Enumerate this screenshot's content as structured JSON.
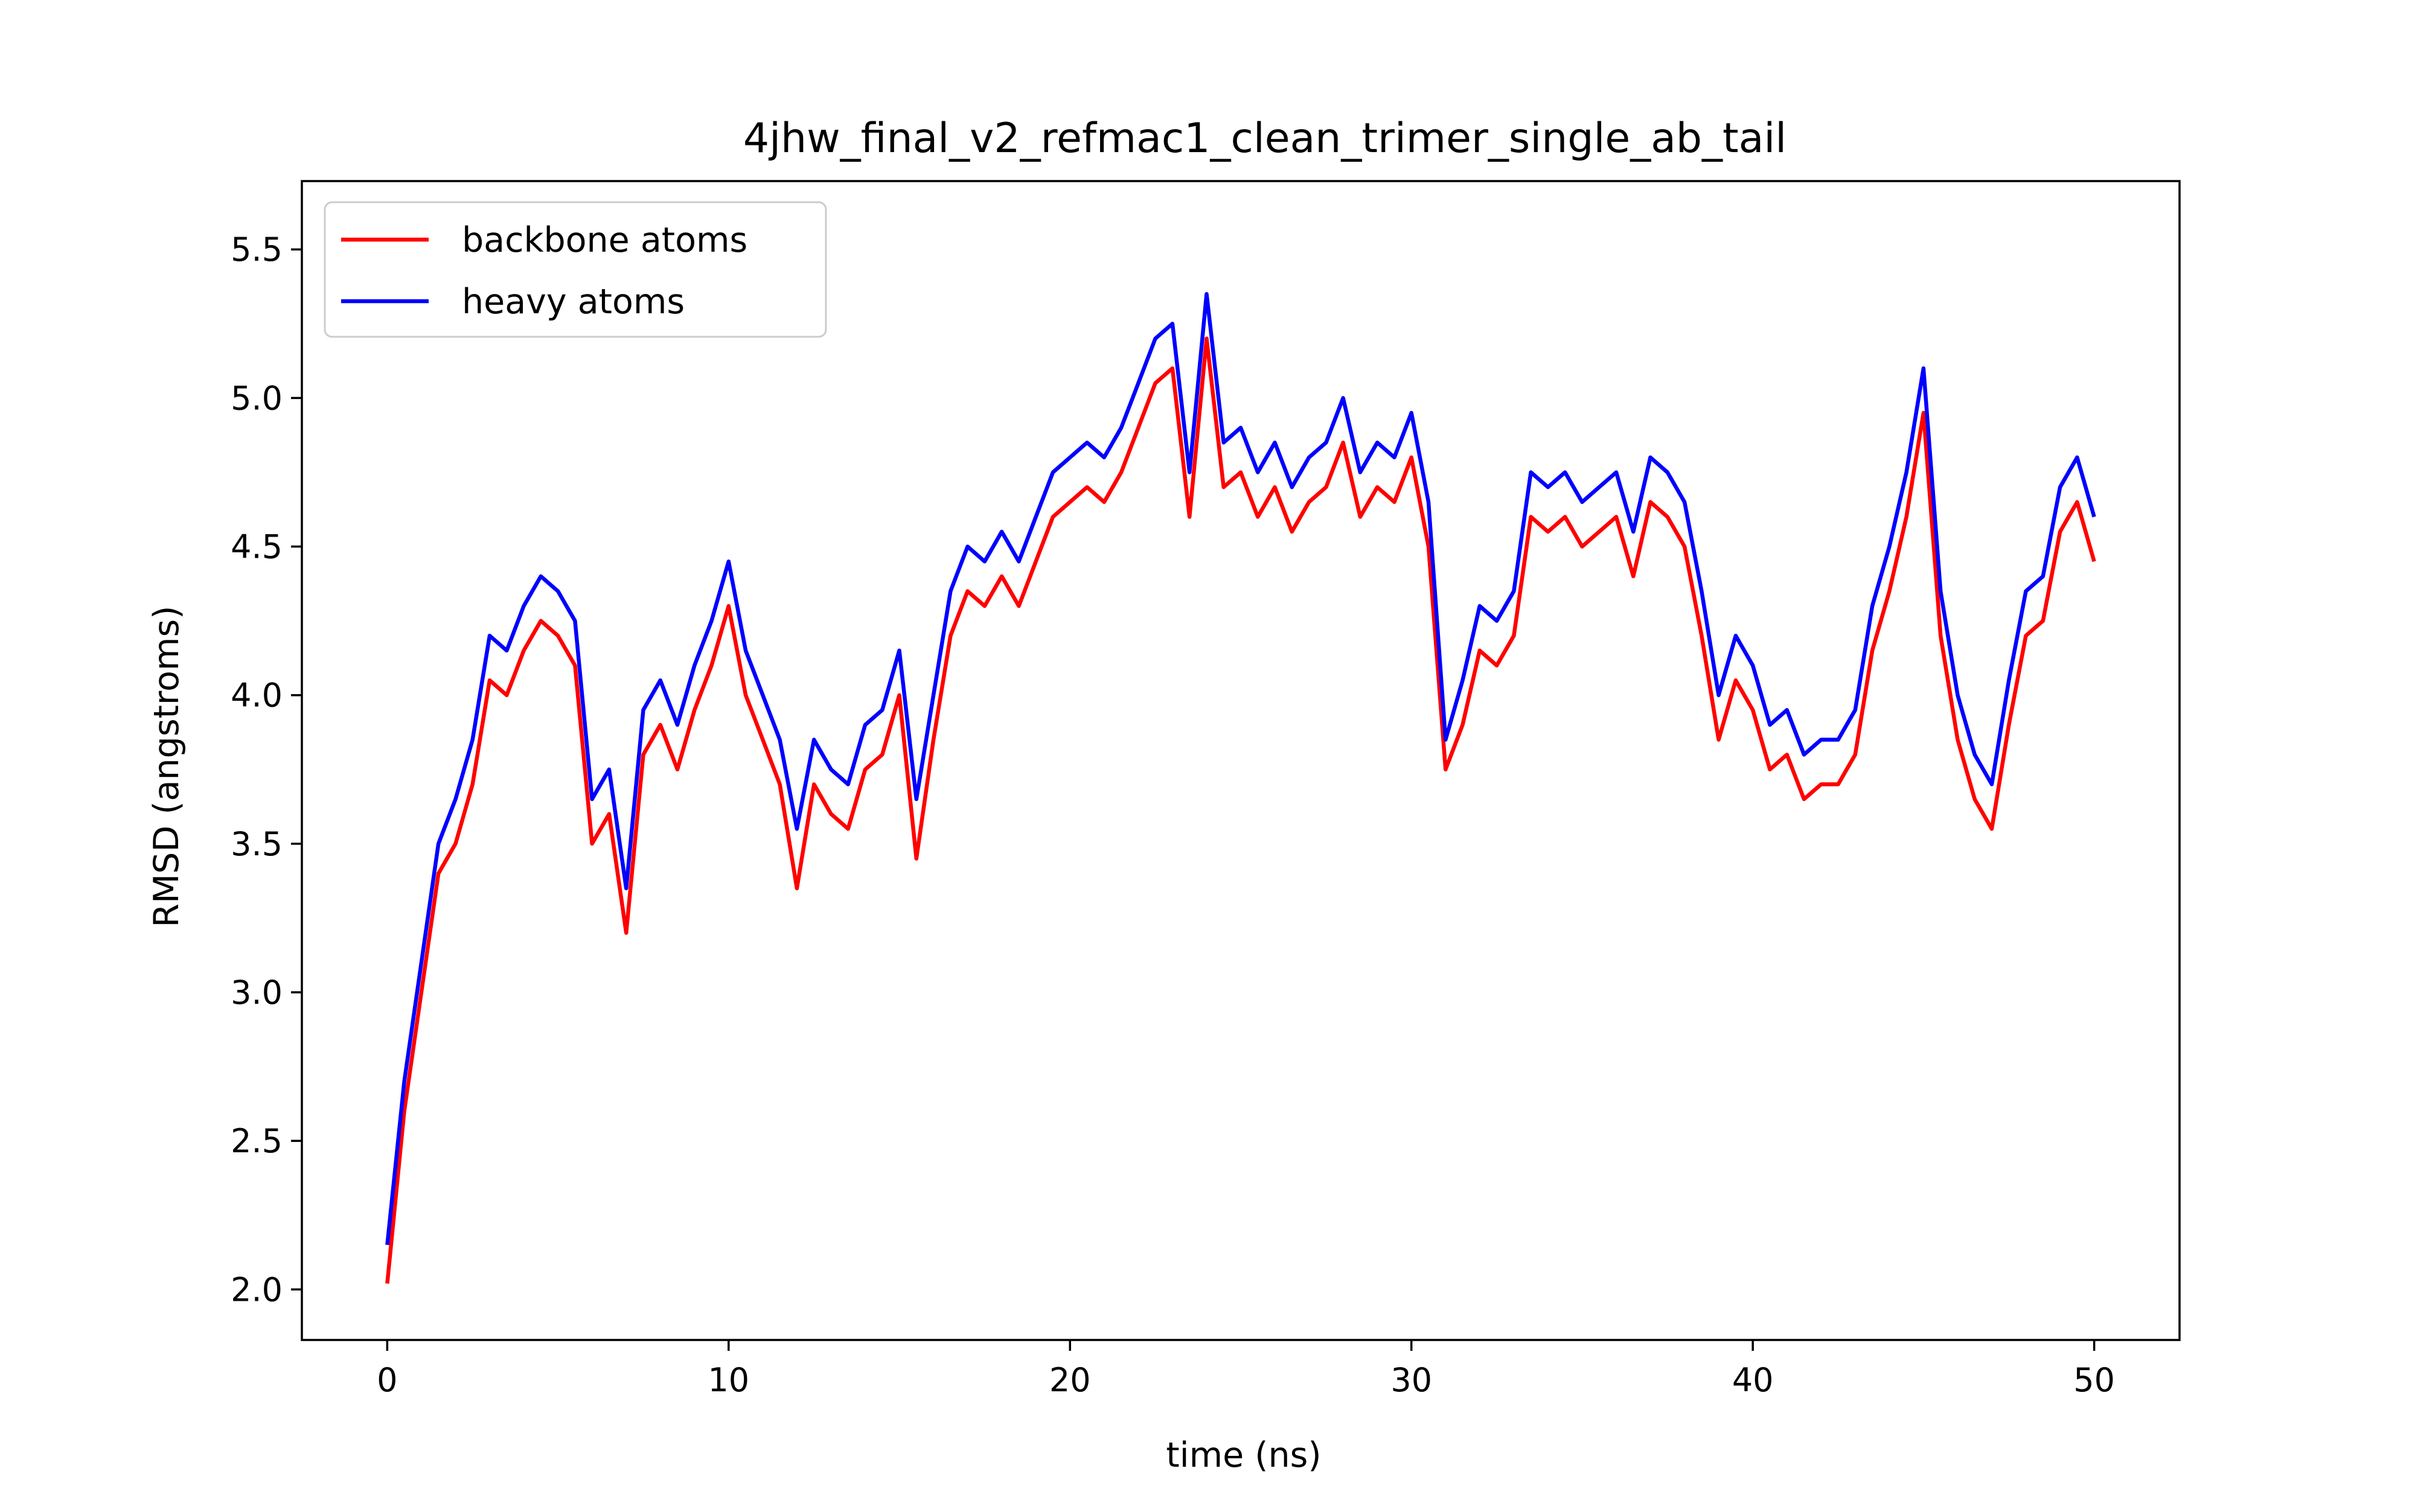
{
  "chart_data": {
    "type": "line",
    "title": "4jhw_final_v2_refmac1_clean_trimer_single_ab_tail",
    "xlabel": "time (ns)",
    "ylabel": "RMSD (angstroms)",
    "xlim": [
      -2.5,
      52.5
    ],
    "ylim": [
      1.83,
      5.73
    ],
    "xticks": [
      0,
      10,
      20,
      30,
      40,
      50
    ],
    "yticks": [
      2.0,
      2.5,
      3.0,
      3.5,
      4.0,
      4.5,
      5.0,
      5.5
    ],
    "xtick_labels": [
      "0",
      "10",
      "20",
      "30",
      "40",
      "50"
    ],
    "ytick_labels": [
      "2.0",
      "2.5",
      "3.0",
      "3.5",
      "4.0",
      "4.5",
      "5.0",
      "5.5"
    ],
    "grid": false,
    "legend_position": "top-left",
    "x": [
      0,
      0.5,
      1,
      1.5,
      2,
      2.5,
      3,
      3.5,
      4,
      4.5,
      5,
      5.5,
      6,
      6.5,
      7,
      7.5,
      8,
      8.5,
      9,
      9.5,
      10,
      10.5,
      11,
      11.5,
      12,
      12.5,
      13,
      13.5,
      14,
      14.5,
      15,
      15.5,
      16,
      16.5,
      17,
      17.5,
      18,
      18.5,
      19,
      19.5,
      20,
      20.5,
      21,
      21.5,
      22,
      22.5,
      23,
      23.5,
      24,
      24.5,
      25,
      25.5,
      26,
      26.5,
      27,
      27.5,
      28,
      28.5,
      29,
      29.5,
      30,
      30.5,
      31,
      31.5,
      32,
      32.5,
      33,
      33.5,
      34,
      34.5,
      35,
      35.5,
      36,
      36.5,
      37,
      37.5,
      38,
      38.5,
      39,
      39.5,
      40,
      40.5,
      41,
      41.5,
      42,
      42.5,
      43,
      43.5,
      44,
      44.5,
      45,
      45.5,
      46,
      46.5,
      47,
      47.5,
      48,
      48.5,
      49,
      49.5,
      50
    ],
    "series": [
      {
        "name": "backbone atoms",
        "color": "#ff0000",
        "values": [
          2.02,
          2.6,
          3.0,
          3.4,
          3.5,
          3.7,
          4.05,
          4.0,
          4.15,
          4.25,
          4.2,
          4.1,
          3.5,
          3.6,
          3.2,
          3.8,
          3.9,
          3.75,
          3.95,
          4.1,
          4.3,
          4.0,
          3.85,
          3.7,
          3.35,
          3.7,
          3.6,
          3.55,
          3.75,
          3.8,
          4.0,
          3.45,
          3.85,
          4.2,
          4.35,
          4.3,
          4.4,
          4.3,
          4.45,
          4.6,
          4.65,
          4.7,
          4.65,
          4.75,
          4.9,
          5.05,
          5.1,
          4.6,
          5.2,
          4.7,
          4.75,
          4.6,
          4.7,
          4.55,
          4.65,
          4.7,
          4.85,
          4.6,
          4.7,
          4.65,
          4.8,
          4.5,
          3.75,
          3.9,
          4.15,
          4.1,
          4.2,
          4.6,
          4.55,
          4.6,
          4.5,
          4.55,
          4.6,
          4.4,
          4.65,
          4.6,
          4.5,
          4.2,
          3.85,
          4.05,
          3.95,
          3.75,
          3.8,
          3.65,
          3.7,
          3.7,
          3.8,
          4.15,
          4.35,
          4.6,
          4.95,
          4.2,
          3.85,
          3.65,
          3.55,
          3.9,
          4.2,
          4.25,
          4.55,
          4.65,
          4.45
        ]
      },
      {
        "name": "heavy atoms",
        "color": "#0000ff",
        "values": [
          2.15,
          2.7,
          3.1,
          3.5,
          3.65,
          3.85,
          4.2,
          4.15,
          4.3,
          4.4,
          4.35,
          4.25,
          3.65,
          3.75,
          3.35,
          3.95,
          4.05,
          3.9,
          4.1,
          4.25,
          4.45,
          4.15,
          4.0,
          3.85,
          3.55,
          3.85,
          3.75,
          3.7,
          3.9,
          3.95,
          4.15,
          3.65,
          4.0,
          4.35,
          4.5,
          4.45,
          4.55,
          4.45,
          4.6,
          4.75,
          4.8,
          4.85,
          4.8,
          4.9,
          5.05,
          5.2,
          5.25,
          4.75,
          5.35,
          4.85,
          4.9,
          4.75,
          4.85,
          4.7,
          4.8,
          4.85,
          5.0,
          4.75,
          4.85,
          4.8,
          4.95,
          4.65,
          3.85,
          4.05,
          4.3,
          4.25,
          4.35,
          4.75,
          4.7,
          4.75,
          4.65,
          4.7,
          4.75,
          4.55,
          4.8,
          4.75,
          4.65,
          4.35,
          4.0,
          4.2,
          4.1,
          3.9,
          3.95,
          3.8,
          3.85,
          3.85,
          3.95,
          4.3,
          4.5,
          4.75,
          5.1,
          4.35,
          4.0,
          3.8,
          3.7,
          4.05,
          4.35,
          4.4,
          4.7,
          4.8,
          4.6
        ]
      }
    ]
  }
}
